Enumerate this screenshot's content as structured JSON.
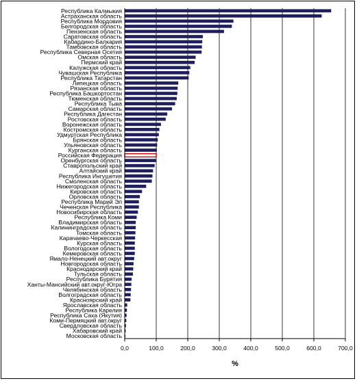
{
  "chart_data": {
    "type": "bar",
    "orientation": "horizontal",
    "xlabel": "%",
    "xlim": [
      0,
      700
    ],
    "xticks": [
      "0,0",
      "100,0",
      "200,0",
      "300,0",
      "400,0",
      "500,0",
      "600,0",
      "700,0"
    ],
    "grid": "vertical",
    "bar_color": "#1f1f5e",
    "highlight_color": "#c00000",
    "highlight_category": "Российская Федерация",
    "categories": [
      "Республика Калмыкия",
      "Астраханская область",
      "Республика Мордовия",
      "Белгородская область",
      "Пензенская область",
      "Саратовская область",
      "Кабардино-Балкария",
      "Тамбовская область",
      "Республика Северная Осетия",
      "Омская область",
      "Пермский край",
      "Калужская область",
      "Чувашская Республика",
      "Республика Татарстан",
      "Липецкая область",
      "Рязанская область",
      "Республика Башкортостан",
      "Тюменская область",
      "Республика Тыва",
      "Самарская область",
      "Республика Дагестан",
      "Ростовская область",
      "Воронежская область",
      "Костромская область",
      "Удмуртская Республика",
      "Брянская область",
      "Ульяновская область",
      "Курганская область",
      "Российская Федерация",
      "Оренбургская область",
      "Ставропольский край",
      "Алтайский край",
      "Республика Ингушетия",
      "Смоленская область",
      "Нижегородская область",
      "Кировская область",
      "Орловская область",
      "Республика Марий Эл",
      "Чеченская Республика",
      "Новосибирская область",
      "Республика Коми",
      "Владимирская область",
      "Калининградская область",
      "Томская область",
      "Карачаево-Черкесская",
      "Курская область",
      "Вологодская область",
      "Кемеровская область",
      "Ямало-Ненецкий авт.округ",
      "Новгородская область",
      "Краснодарский край",
      "Тульская область",
      "Республика Бурятия",
      "Ханты-Мансийский авт.округ-Югра",
      "Челябинская область",
      "Волгоградская область",
      "Красноярский край",
      "Ярославская область",
      "Республика Карелия",
      "Республика Саха (Якутия)",
      "Коми-Пермяцкий авт.округ",
      "Свердловская область",
      "Хабаровский край",
      "Московская область"
    ],
    "values": [
      655,
      625,
      345,
      340,
      315,
      248,
      246,
      245,
      244,
      225,
      222,
      208,
      205,
      203,
      170,
      168,
      167,
      165,
      160,
      150,
      135,
      130,
      115,
      110,
      108,
      105,
      103,
      102,
      100,
      100,
      95,
      90,
      88,
      86,
      68,
      55,
      48,
      45,
      45,
      42,
      38,
      35,
      35,
      34,
      33,
      32,
      32,
      32,
      30,
      28,
      27,
      26,
      22,
      21,
      20,
      19,
      18,
      8,
      7,
      6,
      5,
      4,
      3,
      2
    ]
  }
}
